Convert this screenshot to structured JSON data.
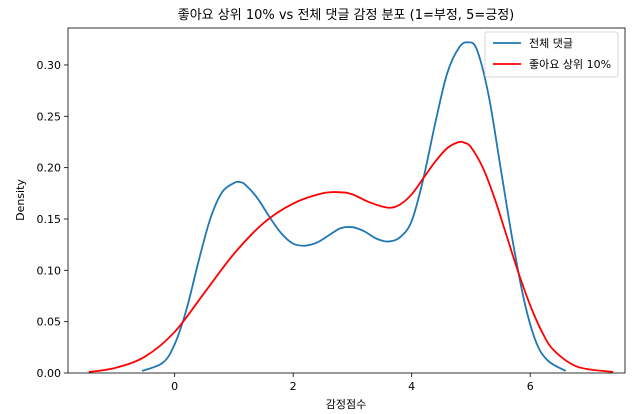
{
  "chart_data": {
    "type": "line",
    "title": "좋아요 상위 10% vs 전체 댓글 감정 분포 (1=부정, 5=긍정)",
    "xlabel": "감정점수",
    "ylabel": "Density",
    "xlim": [
      -1.8,
      7.6
    ],
    "ylim": [
      0.0,
      0.336
    ],
    "xticks": [
      0,
      2,
      4,
      6
    ],
    "yticks": [
      0.0,
      0.05,
      0.1,
      0.15,
      0.2,
      0.25,
      0.3
    ],
    "ytick_labels": [
      "0.00",
      "0.05",
      "0.10",
      "0.15",
      "0.20",
      "0.25",
      "0.30"
    ],
    "grid": false,
    "legend_position": "top-right",
    "series": [
      {
        "name": "전체 댓글",
        "color": "#1f77b4",
        "x": [
          -0.55,
          -0.2,
          0.0,
          0.2,
          0.4,
          0.6,
          0.8,
          1.0,
          1.1,
          1.2,
          1.4,
          1.6,
          1.8,
          2.0,
          2.2,
          2.4,
          2.6,
          2.8,
          3.0,
          3.2,
          3.4,
          3.6,
          3.8,
          4.0,
          4.2,
          4.4,
          4.6,
          4.8,
          4.95,
          5.1,
          5.3,
          5.5,
          5.7,
          5.9,
          6.1,
          6.3,
          6.6
        ],
        "y": [
          0.002,
          0.01,
          0.028,
          0.062,
          0.108,
          0.15,
          0.176,
          0.185,
          0.186,
          0.183,
          0.17,
          0.152,
          0.136,
          0.126,
          0.124,
          0.127,
          0.134,
          0.141,
          0.142,
          0.138,
          0.131,
          0.128,
          0.132,
          0.148,
          0.19,
          0.244,
          0.292,
          0.317,
          0.322,
          0.315,
          0.27,
          0.2,
          0.13,
          0.07,
          0.03,
          0.012,
          0.002
        ]
      },
      {
        "name": "좋아요 상위 10%",
        "color": "#ff0000",
        "x": [
          -1.45,
          -1.0,
          -0.5,
          0.0,
          0.5,
          1.0,
          1.5,
          2.0,
          2.5,
          2.8,
          3.0,
          3.3,
          3.6,
          3.8,
          4.0,
          4.2,
          4.4,
          4.6,
          4.8,
          4.9,
          5.0,
          5.2,
          5.4,
          5.6,
          5.8,
          6.0,
          6.2,
          6.4,
          6.8,
          7.4
        ],
        "y": [
          0.001,
          0.005,
          0.016,
          0.04,
          0.078,
          0.116,
          0.146,
          0.165,
          0.175,
          0.176,
          0.174,
          0.166,
          0.161,
          0.164,
          0.174,
          0.19,
          0.206,
          0.219,
          0.225,
          0.224,
          0.22,
          0.2,
          0.17,
          0.134,
          0.098,
          0.066,
          0.04,
          0.022,
          0.006,
          0.001
        ]
      }
    ]
  }
}
